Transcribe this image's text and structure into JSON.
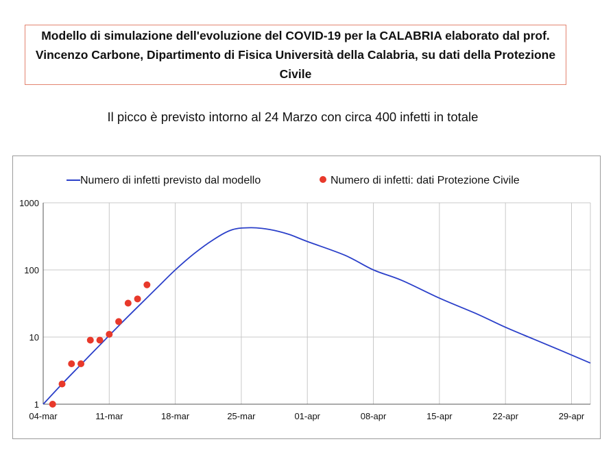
{
  "header": {
    "title": "Modello di simulazione dell'evoluzione del COVID-19 per la CALABRIA elaborato dal prof. Vincenzo Carbone, Dipartimento di Fisica Università della Calabria, su dati della Protezione Civile",
    "subtitle": "Il picco è previsto intorno al 24 Marzo con circa 400 infetti in totale"
  },
  "colors": {
    "model": "#2a3fc9",
    "data": "#e8392b",
    "title_border": "#e2836f",
    "grid": "#c8c8c8"
  },
  "chart_data": {
    "type": "line",
    "title": "",
    "xlabel": "",
    "ylabel": "",
    "yscale": "log",
    "ylim": [
      1,
      1000
    ],
    "xlim": [
      "2020-03-04",
      "2020-05-01"
    ],
    "grid": true,
    "legend_placement": "top",
    "y_ticks": [
      "1",
      "10",
      "100",
      "1000"
    ],
    "x_ticks": [
      "04-mar",
      "11-mar",
      "18-mar",
      "25-mar",
      "01-apr",
      "08-apr",
      "15-apr",
      "22-apr",
      "29-apr"
    ],
    "series": [
      {
        "name": "Numero di infetti previsto dal modello",
        "kind": "line",
        "x": [
          "2020-03-04",
          "2020-03-06",
          "2020-03-08",
          "2020-03-10",
          "2020-03-12",
          "2020-03-14",
          "2020-03-16",
          "2020-03-18",
          "2020-03-20",
          "2020-03-22",
          "2020-03-24",
          "2020-03-26",
          "2020-03-28",
          "2020-03-30",
          "2020-04-01",
          "2020-04-05",
          "2020-04-08",
          "2020-04-11",
          "2020-04-15",
          "2020-04-19",
          "2020-04-22",
          "2020-04-25",
          "2020-04-28",
          "2020-05-01"
        ],
        "y": [
          1.0,
          2.0,
          3.9,
          7.6,
          14.7,
          28,
          53,
          100,
          175,
          280,
          395,
          425,
          400,
          340,
          265,
          165,
          100,
          70,
          38,
          22,
          14,
          9.3,
          6.2,
          4.1
        ]
      },
      {
        "name": "Numero di infetti: dati Protezione Civile",
        "kind": "scatter",
        "x": [
          "2020-03-05",
          "2020-03-06",
          "2020-03-07",
          "2020-03-08",
          "2020-03-09",
          "2020-03-10",
          "2020-03-11",
          "2020-03-12",
          "2020-03-13",
          "2020-03-14",
          "2020-03-15"
        ],
        "y": [
          1,
          2,
          4,
          4,
          9,
          9,
          11,
          17,
          32,
          37,
          60
        ]
      }
    ]
  }
}
